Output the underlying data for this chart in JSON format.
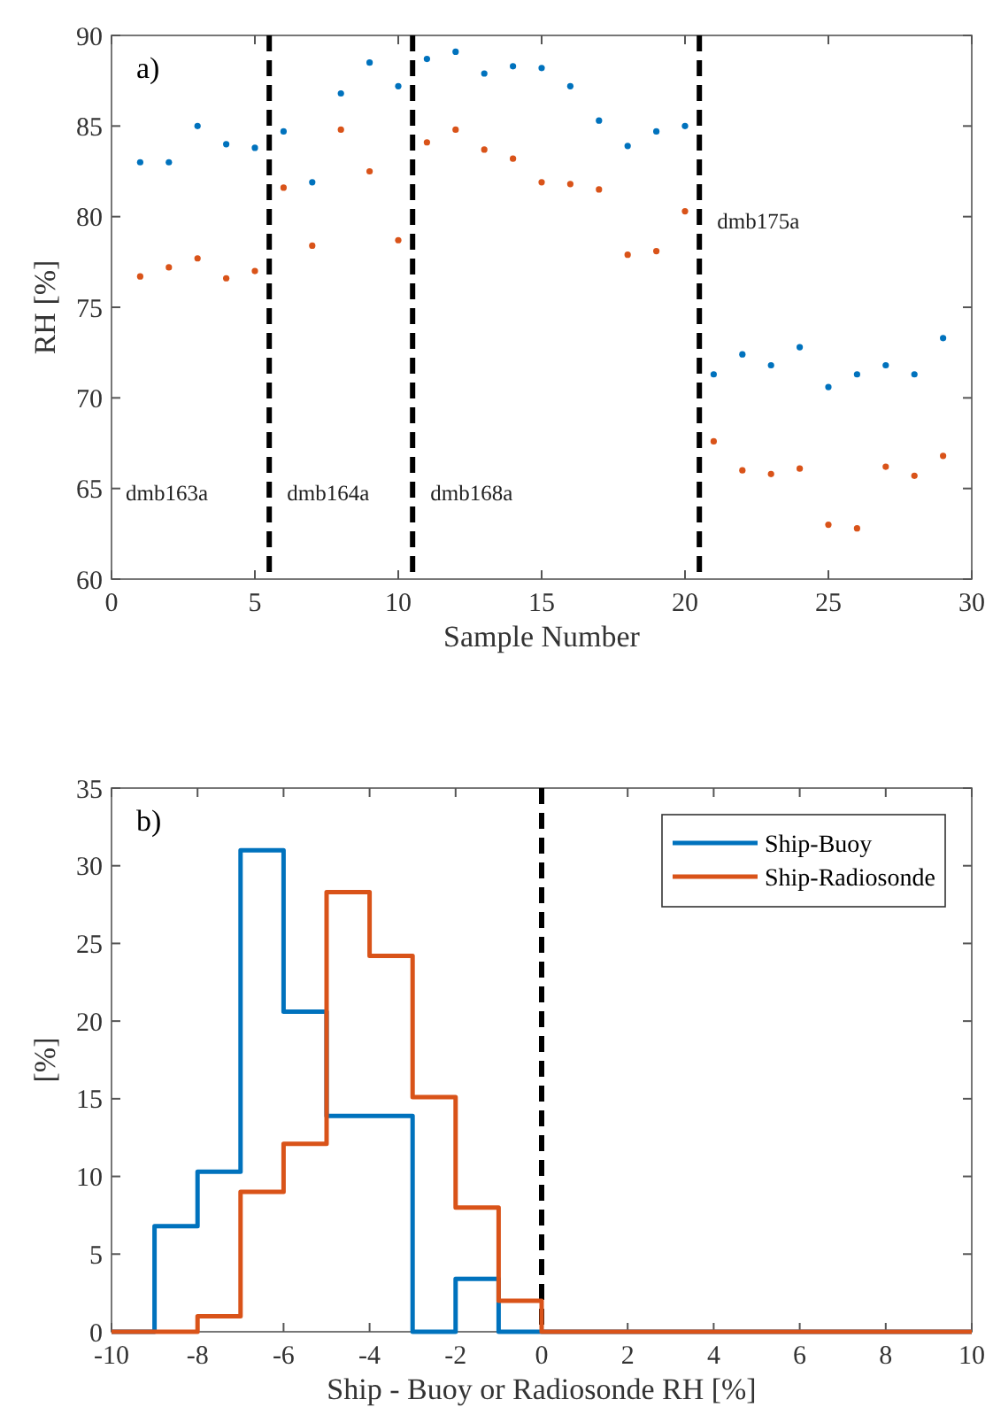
{
  "chart_data": [
    {
      "type": "scatter",
      "annotations": [
        "a)",
        "dmb163a",
        "dmb164a",
        "dmb168a",
        "dmb175a"
      ],
      "xlabel": "Sample Number",
      "ylabel": "RH [%]",
      "x": [
        1,
        2,
        3,
        4,
        5,
        6,
        7,
        8,
        9,
        10,
        11,
        12,
        13,
        14,
        15,
        16,
        17,
        18,
        19,
        20,
        21,
        22,
        23,
        24,
        25,
        26,
        27,
        28,
        29
      ],
      "series": [
        {
          "color": "#0072bd",
          "values": [
            83.0,
            83.0,
            85.0,
            84.0,
            83.8,
            84.7,
            81.9,
            86.8,
            88.5,
            87.2,
            88.7,
            89.1,
            87.9,
            88.3,
            88.2,
            87.2,
            85.3,
            83.9,
            84.7,
            85.0,
            71.3,
            72.4,
            71.8,
            72.8,
            70.6,
            71.3,
            71.8,
            71.3,
            73.3
          ]
        },
        {
          "color": "#d95319",
          "values": [
            76.7,
            77.2,
            77.7,
            76.6,
            77.0,
            81.6,
            78.4,
            84.8,
            82.5,
            78.7,
            84.1,
            84.8,
            83.7,
            83.2,
            81.9,
            81.8,
            81.5,
            77.9,
            78.1,
            80.3,
            67.6,
            66.0,
            65.8,
            66.1,
            63.0,
            62.8,
            66.2,
            65.7,
            66.8
          ]
        }
      ],
      "xlim": [
        0,
        30
      ],
      "xticks": [
        0,
        5,
        10,
        15,
        20,
        25,
        30
      ],
      "ylim": [
        60,
        90
      ],
      "yticks": [
        60,
        65,
        70,
        75,
        80,
        85,
        90
      ],
      "marker": "circle",
      "grid": false,
      "legend": false,
      "ref_lines": [
        {
          "axis": "x",
          "value": 5.5,
          "color": "#000000",
          "line_style": "dashed"
        },
        {
          "axis": "x",
          "value": 10.5,
          "color": "#000000",
          "line_style": "dashed"
        },
        {
          "axis": "x",
          "value": 20.5,
          "color": "#000000",
          "line_style": "dashed"
        }
      ]
    },
    {
      "type": "histogram",
      "annotations": [
        "b)"
      ],
      "xlabel": "Ship - Buoy or Radiosonde RH [%]",
      "ylabel": "[%]",
      "bins": [
        -10,
        -9,
        -8,
        -7,
        -6,
        -5,
        -4,
        -3,
        -2,
        -1,
        0,
        1,
        2,
        3,
        4,
        5,
        6,
        7,
        8,
        9,
        10
      ],
      "series": [
        {
          "name": "Ship-Buoy",
          "color": "#0072bd",
          "values": [
            0,
            6.8,
            10.3,
            31.0,
            20.6,
            13.9,
            13.9,
            0,
            3.4,
            0,
            0,
            0,
            0,
            0,
            0,
            0,
            0,
            0,
            0,
            0
          ]
        },
        {
          "name": "Ship-Radiosonde",
          "color": "#d95319",
          "values": [
            0,
            0,
            1.0,
            9.0,
            12.1,
            28.3,
            24.2,
            15.1,
            8.0,
            2.0,
            0,
            0,
            0,
            0,
            0,
            0,
            0,
            0,
            0,
            0
          ]
        }
      ],
      "xlim": [
        -10,
        10
      ],
      "xticks": [
        -10,
        -8,
        -6,
        -4,
        -2,
        0,
        2,
        4,
        6,
        8,
        10
      ],
      "ylim": [
        0,
        35
      ],
      "yticks": [
        0,
        5,
        10,
        15,
        20,
        25,
        30,
        35
      ],
      "grid": false,
      "legend": "top right",
      "line_style": "solid",
      "ref_lines": [
        {
          "axis": "x",
          "value": 0,
          "color": "#000000",
          "line_style": "dashed"
        }
      ]
    }
  ]
}
